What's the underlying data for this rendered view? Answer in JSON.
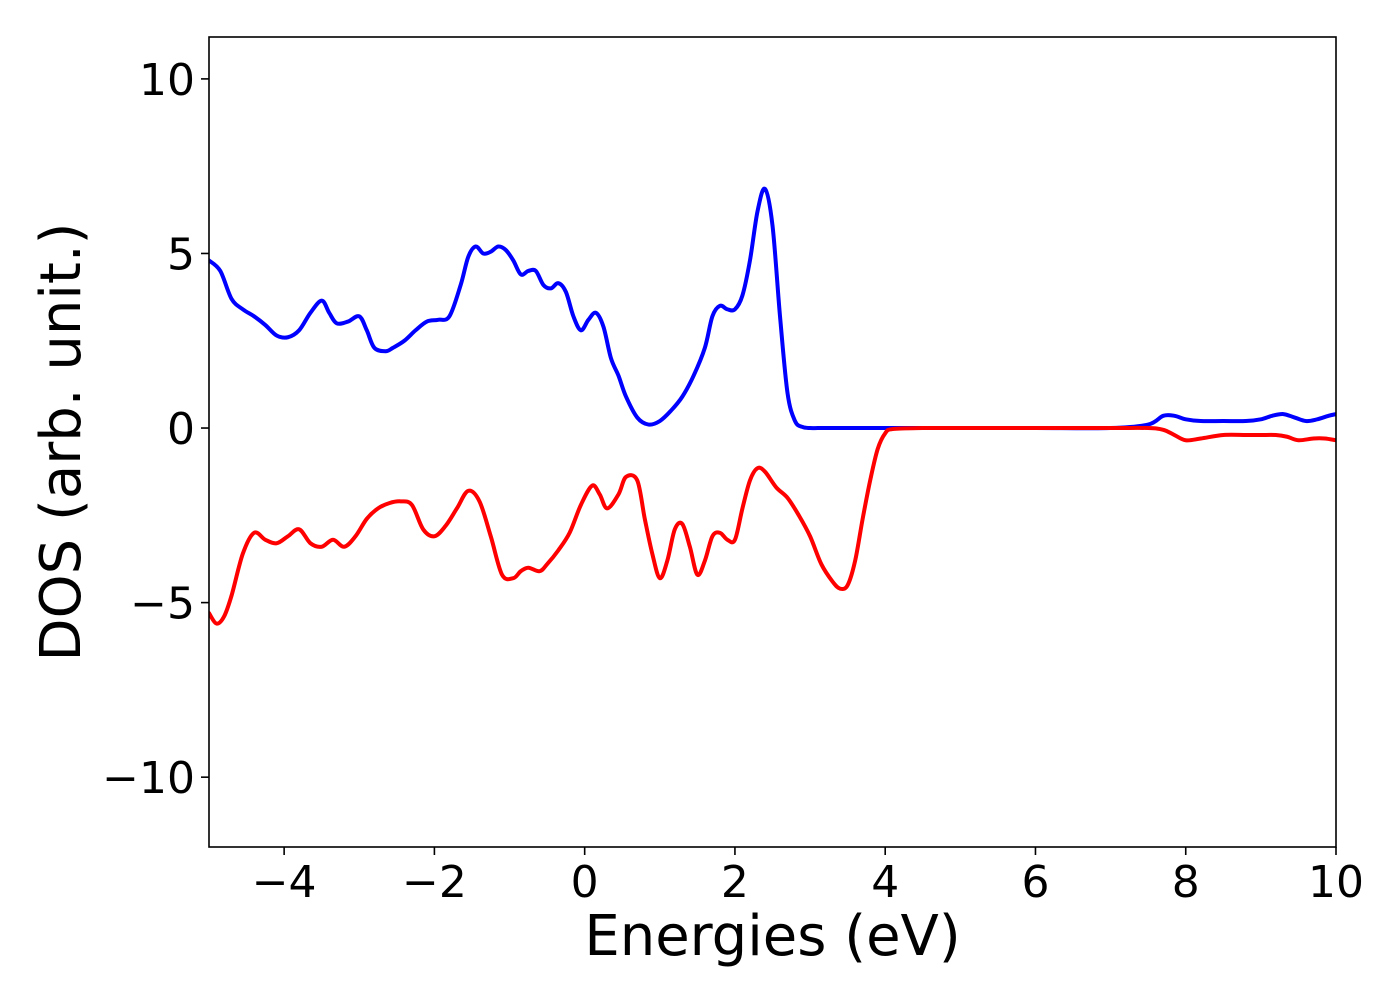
{
  "chart_data": {
    "type": "line",
    "title": "",
    "xlabel": "Energies (eV)",
    "ylabel": "DOS (arb. unit.)",
    "xlim": [
      -5,
      10
    ],
    "ylim": [
      -12,
      11.2
    ],
    "xticks": [
      -4,
      -2,
      0,
      2,
      4,
      6,
      8,
      10
    ],
    "xtick_labels": [
      "−4",
      "−2",
      "0",
      "2",
      "4",
      "6",
      "8",
      "10"
    ],
    "yticks": [
      -10,
      -5,
      0,
      5,
      10
    ],
    "ytick_labels": [
      "−10",
      "−5",
      "0",
      "5",
      "10"
    ],
    "grid": false,
    "legend": "none",
    "series": [
      {
        "color": "#0000ff",
        "x": [
          -5.0,
          -4.85,
          -4.7,
          -4.55,
          -4.4,
          -4.25,
          -4.1,
          -3.95,
          -3.8,
          -3.65,
          -3.5,
          -3.4,
          -3.3,
          -3.15,
          -3.0,
          -2.9,
          -2.8,
          -2.65,
          -2.55,
          -2.4,
          -2.25,
          -2.1,
          -1.95,
          -1.8,
          -1.65,
          -1.55,
          -1.45,
          -1.35,
          -1.25,
          -1.15,
          -1.05,
          -0.95,
          -0.85,
          -0.75,
          -0.65,
          -0.55,
          -0.45,
          -0.35,
          -0.25,
          -0.15,
          -0.05,
          0.05,
          0.15,
          0.25,
          0.35,
          0.45,
          0.55,
          0.7,
          0.85,
          1.0,
          1.15,
          1.3,
          1.45,
          1.6,
          1.7,
          1.8,
          1.9,
          2.0,
          2.1,
          2.2,
          2.3,
          2.4,
          2.5,
          2.6,
          2.7,
          2.8,
          2.9,
          3.0,
          3.1,
          3.2,
          3.3,
          3.5,
          4.0,
          5.0,
          6.0,
          7.0,
          7.5,
          7.7,
          7.85,
          8.0,
          8.2,
          8.5,
          8.8,
          9.0,
          9.15,
          9.3,
          9.45,
          9.6,
          9.75,
          9.9,
          10.0
        ],
        "y": [
          4.8,
          4.5,
          3.7,
          3.4,
          3.2,
          2.95,
          2.65,
          2.6,
          2.8,
          3.3,
          3.65,
          3.3,
          3.0,
          3.05,
          3.2,
          2.8,
          2.3,
          2.2,
          2.3,
          2.5,
          2.8,
          3.05,
          3.1,
          3.2,
          4.1,
          4.9,
          5.2,
          5.0,
          5.05,
          5.2,
          5.1,
          4.8,
          4.4,
          4.5,
          4.5,
          4.1,
          4.0,
          4.15,
          3.9,
          3.2,
          2.8,
          3.1,
          3.3,
          2.9,
          2.0,
          1.5,
          0.9,
          0.3,
          0.1,
          0.2,
          0.5,
          0.9,
          1.5,
          2.3,
          3.2,
          3.5,
          3.4,
          3.4,
          3.8,
          4.8,
          6.2,
          6.85,
          5.8,
          3.2,
          1.0,
          0.2,
          0.03,
          0.0,
          0.0,
          0.0,
          0.0,
          0.0,
          0.0,
          0.0,
          0.0,
          0.0,
          0.1,
          0.35,
          0.35,
          0.25,
          0.2,
          0.2,
          0.2,
          0.25,
          0.35,
          0.4,
          0.3,
          0.2,
          0.25,
          0.35,
          0.4
        ]
      },
      {
        "color": "#ff0000",
        "x": [
          -5.0,
          -4.9,
          -4.8,
          -4.7,
          -4.55,
          -4.4,
          -4.25,
          -4.1,
          -3.95,
          -3.8,
          -3.65,
          -3.5,
          -3.35,
          -3.2,
          -3.05,
          -2.9,
          -2.75,
          -2.6,
          -2.45,
          -2.3,
          -2.15,
          -2.0,
          -1.85,
          -1.7,
          -1.55,
          -1.4,
          -1.25,
          -1.1,
          -0.95,
          -0.85,
          -0.75,
          -0.6,
          -0.5,
          -0.35,
          -0.2,
          -0.05,
          0.1,
          0.2,
          0.3,
          0.45,
          0.55,
          0.7,
          0.8,
          0.9,
          1.0,
          1.1,
          1.2,
          1.3,
          1.4,
          1.5,
          1.6,
          1.7,
          1.8,
          1.9,
          2.0,
          2.1,
          2.2,
          2.3,
          2.4,
          2.55,
          2.7,
          2.85,
          3.0,
          3.15,
          3.3,
          3.4,
          3.5,
          3.6,
          3.7,
          3.8,
          3.9,
          4.0,
          4.1,
          4.5,
          5.0,
          6.0,
          7.0,
          7.5,
          7.7,
          7.85,
          8.0,
          8.2,
          8.5,
          8.8,
          9.0,
          9.2,
          9.35,
          9.5,
          9.7,
          9.85,
          10.0
        ],
        "y": [
          -5.3,
          -5.6,
          -5.4,
          -4.8,
          -3.6,
          -3.0,
          -3.2,
          -3.3,
          -3.1,
          -2.9,
          -3.3,
          -3.4,
          -3.2,
          -3.4,
          -3.1,
          -2.6,
          -2.3,
          -2.15,
          -2.1,
          -2.2,
          -2.9,
          -3.1,
          -2.8,
          -2.3,
          -1.8,
          -2.1,
          -3.1,
          -4.2,
          -4.3,
          -4.1,
          -4.0,
          -4.1,
          -3.9,
          -3.5,
          -3.0,
          -2.2,
          -1.65,
          -1.9,
          -2.3,
          -1.9,
          -1.4,
          -1.5,
          -2.6,
          -3.6,
          -4.3,
          -3.8,
          -2.9,
          -2.75,
          -3.4,
          -4.2,
          -3.8,
          -3.1,
          -3.0,
          -3.2,
          -3.2,
          -2.3,
          -1.5,
          -1.15,
          -1.25,
          -1.7,
          -2.0,
          -2.5,
          -3.1,
          -3.9,
          -4.4,
          -4.6,
          -4.5,
          -3.8,
          -2.6,
          -1.5,
          -0.6,
          -0.15,
          -0.03,
          0.0,
          0.0,
          0.0,
          0.0,
          0.0,
          -0.05,
          -0.2,
          -0.35,
          -0.3,
          -0.2,
          -0.2,
          -0.2,
          -0.2,
          -0.25,
          -0.35,
          -0.3,
          -0.3,
          -0.35
        ]
      }
    ]
  }
}
